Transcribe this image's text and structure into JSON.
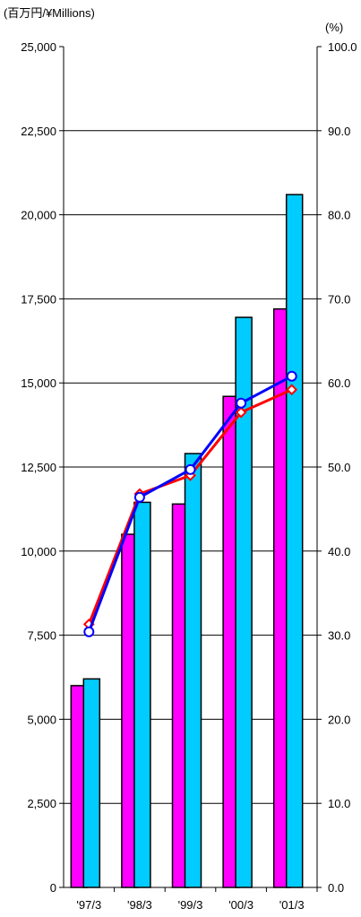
{
  "chart_data": {
    "type": "bar",
    "categories": [
      "'97/3",
      "'98/3",
      "'99/3",
      "'00/3",
      "'01/3"
    ],
    "left_axis": {
      "unit_label": "(百万円/¥Millions)",
      "ylim": [
        0,
        25000
      ],
      "ticks": [
        "0",
        "2,500",
        "5,000",
        "7,500",
        "10,000",
        "12,500",
        "15,000",
        "17,500",
        "20,000",
        "22,500",
        "25,000"
      ]
    },
    "right_axis": {
      "unit_label": "(%)",
      "ylim": [
        0,
        100
      ],
      "ticks": [
        "0.0",
        "10.0",
        "20.0",
        "30.0",
        "40.0",
        "50.0",
        "60.0",
        "70.0",
        "80.0",
        "90.0",
        "100.0"
      ]
    },
    "bar_series": [
      {
        "color": "#ff00ff",
        "values": [
          6000,
          10500,
          11400,
          14600,
          17200
        ]
      },
      {
        "color": "#00ccff",
        "values": [
          6200,
          11450,
          12900,
          16950,
          20600
        ]
      }
    ],
    "line_series": [
      {
        "color": "#ff0000",
        "marker": "diamond",
        "values": [
          31.3,
          46.8,
          49.0,
          56.5,
          59.2
        ]
      },
      {
        "color": "#0000ff",
        "marker": "circle",
        "values": [
          30.4,
          46.4,
          49.7,
          57.6,
          60.8
        ]
      }
    ],
    "grid": true,
    "legend": "none"
  }
}
